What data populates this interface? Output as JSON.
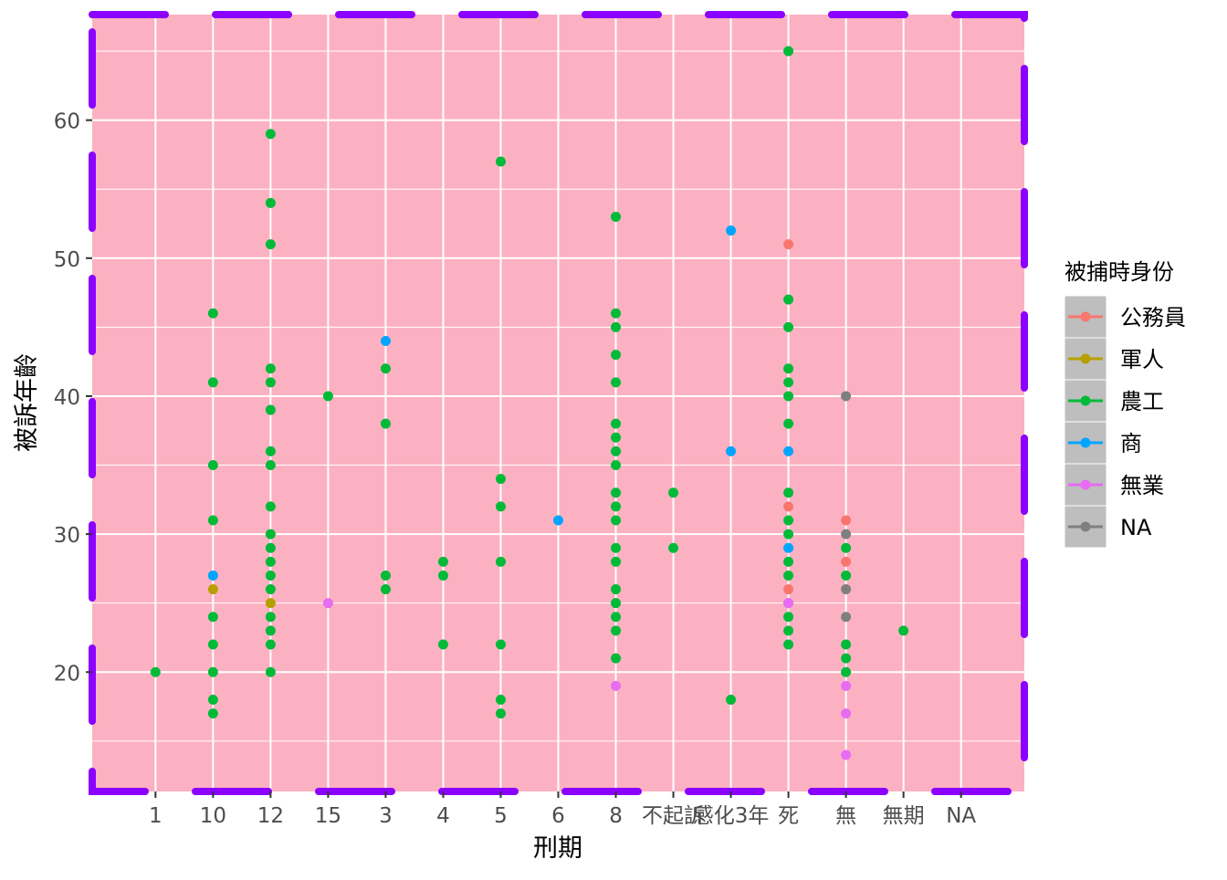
{
  "chart_data": {
    "type": "scatter",
    "title": "",
    "xlabel": "刑期",
    "ylabel": "被訴年齡",
    "categories": [
      "1",
      "10",
      "12",
      "15",
      "3",
      "4",
      "5",
      "6",
      "8",
      "不起訴",
      "感化3年",
      "死",
      "無",
      "無期",
      "NA"
    ],
    "x_tick_labels": [
      "1",
      "10",
      "12",
      "15",
      "3",
      "4",
      "5",
      "6",
      "8",
      "不起訴",
      "感化3年",
      "死",
      "無",
      "無期",
      "NA"
    ],
    "y_ticks": [
      20,
      30,
      40,
      50,
      60
    ],
    "ylim": [
      11.35,
      67.65
    ],
    "grid": true,
    "panel_background": "#FCB1C2",
    "panel_border": {
      "color": "#8B00FF",
      "style": "dashed"
    },
    "legend": {
      "title": "被捕時身份",
      "position": "right",
      "entries": [
        "公務員",
        "軍人",
        "農工",
        "商",
        "無業",
        "NA"
      ]
    },
    "series": [
      {
        "name": "公務員",
        "color": "#F8766D",
        "points": [
          [
            "死",
            51
          ],
          [
            "死",
            32
          ],
          [
            "死",
            26
          ],
          [
            "死",
            25
          ],
          [
            "無",
            31
          ],
          [
            "無",
            28
          ]
        ]
      },
      {
        "name": "軍人",
        "color": "#B79F00",
        "points": [
          [
            "10",
            26
          ],
          [
            "12",
            25
          ]
        ]
      },
      {
        "name": "農工",
        "color": "#00BA38",
        "points": [
          [
            "1",
            20
          ],
          [
            "10",
            46
          ],
          [
            "10",
            41
          ],
          [
            "10",
            35
          ],
          [
            "10",
            31
          ],
          [
            "10",
            24
          ],
          [
            "10",
            22
          ],
          [
            "10",
            20
          ],
          [
            "10",
            18
          ],
          [
            "10",
            17
          ],
          [
            "12",
            59
          ],
          [
            "12",
            54
          ],
          [
            "12",
            51
          ],
          [
            "12",
            42
          ],
          [
            "12",
            41
          ],
          [
            "12",
            39
          ],
          [
            "12",
            36
          ],
          [
            "12",
            35
          ],
          [
            "12",
            32
          ],
          [
            "12",
            30
          ],
          [
            "12",
            29
          ],
          [
            "12",
            28
          ],
          [
            "12",
            27
          ],
          [
            "12",
            26
          ],
          [
            "12",
            24
          ],
          [
            "12",
            23
          ],
          [
            "12",
            22
          ],
          [
            "12",
            20
          ],
          [
            "15",
            40
          ],
          [
            "3",
            42
          ],
          [
            "3",
            38
          ],
          [
            "3",
            27
          ],
          [
            "3",
            26
          ],
          [
            "4",
            28
          ],
          [
            "4",
            27
          ],
          [
            "4",
            22
          ],
          [
            "5",
            57
          ],
          [
            "5",
            34
          ],
          [
            "5",
            32
          ],
          [
            "5",
            28
          ],
          [
            "5",
            22
          ],
          [
            "5",
            18
          ],
          [
            "5",
            17
          ],
          [
            "8",
            53
          ],
          [
            "8",
            46
          ],
          [
            "8",
            45
          ],
          [
            "8",
            43
          ],
          [
            "8",
            41
          ],
          [
            "8",
            38
          ],
          [
            "8",
            37
          ],
          [
            "8",
            36
          ],
          [
            "8",
            35
          ],
          [
            "8",
            33
          ],
          [
            "8",
            32
          ],
          [
            "8",
            31
          ],
          [
            "8",
            29
          ],
          [
            "8",
            28
          ],
          [
            "8",
            26
          ],
          [
            "8",
            25
          ],
          [
            "8",
            24
          ],
          [
            "8",
            23
          ],
          [
            "8",
            21
          ],
          [
            "不起訴",
            33
          ],
          [
            "不起訴",
            29
          ],
          [
            "感化3年",
            18
          ],
          [
            "死",
            65
          ],
          [
            "死",
            47
          ],
          [
            "死",
            45
          ],
          [
            "死",
            42
          ],
          [
            "死",
            41
          ],
          [
            "死",
            40
          ],
          [
            "死",
            38
          ],
          [
            "死",
            33
          ],
          [
            "死",
            31
          ],
          [
            "死",
            30
          ],
          [
            "死",
            28
          ],
          [
            "死",
            27
          ],
          [
            "死",
            24
          ],
          [
            "死",
            23
          ],
          [
            "死",
            22
          ],
          [
            "無",
            29
          ],
          [
            "無",
            27
          ],
          [
            "無",
            22
          ],
          [
            "無",
            21
          ],
          [
            "無",
            20
          ],
          [
            "無期",
            23
          ]
        ]
      },
      {
        "name": "商",
        "color": "#00A5FF",
        "points": [
          [
            "10",
            27
          ],
          [
            "3",
            44
          ],
          [
            "6",
            31
          ],
          [
            "感化3年",
            52
          ],
          [
            "感化3年",
            36
          ],
          [
            "死",
            36
          ],
          [
            "死",
            29
          ]
        ]
      },
      {
        "name": "無業",
        "color": "#E76BF3",
        "points": [
          [
            "15",
            25
          ],
          [
            "8",
            19
          ],
          [
            "死",
            25
          ],
          [
            "無",
            19
          ],
          [
            "無",
            17
          ],
          [
            "無",
            14
          ]
        ]
      },
      {
        "name": "NA",
        "color": "#7F7F7F",
        "points": [
          [
            "無",
            40
          ],
          [
            "無",
            30
          ],
          [
            "無",
            26
          ],
          [
            "無",
            24
          ]
        ]
      }
    ]
  }
}
